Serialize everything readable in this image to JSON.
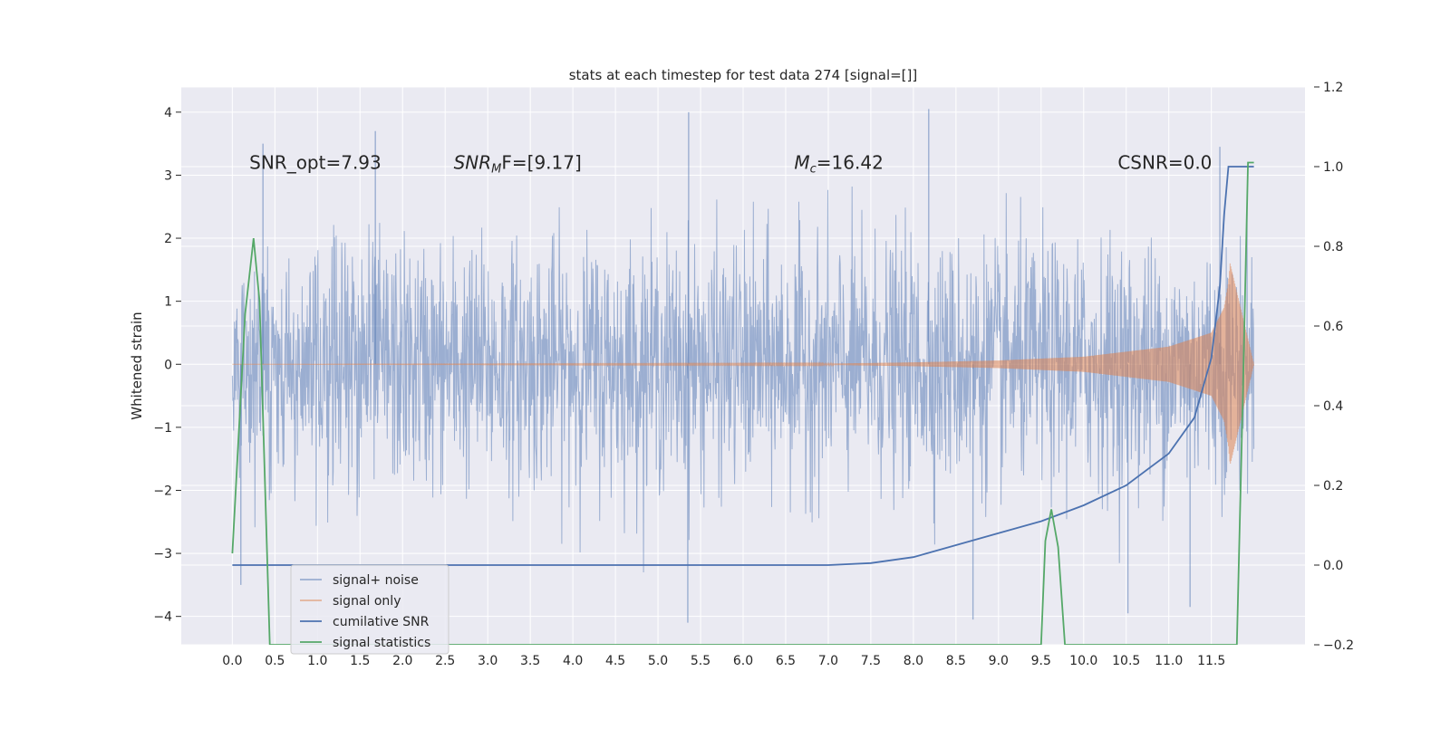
{
  "chart_data": {
    "type": "line",
    "title": "stats at each timestep for test data 274 [signal=[]]",
    "xlabel": "",
    "ylabel": "Whitened strain",
    "xlim": [
      -0.6,
      12.6
    ],
    "ylim": [
      -4.45,
      4.4
    ],
    "y2lim": [
      -0.2,
      1.2
    ],
    "x_ticks": [
      0.0,
      0.5,
      1.0,
      1.5,
      2.0,
      2.5,
      3.0,
      3.5,
      4.0,
      4.5,
      5.0,
      5.5,
      6.0,
      6.5,
      7.0,
      7.5,
      8.0,
      8.5,
      9.0,
      9.5,
      10.0,
      10.5,
      11.0,
      11.5
    ],
    "x_tick_labels": [
      "0.0",
      "0.5",
      "1.0",
      "1.5",
      "2.0",
      "2.5",
      "3.0",
      "3.5",
      "4.0",
      "4.5",
      "5.0",
      "5.5",
      "6.0",
      "6.5",
      "7.0",
      "7.5",
      "8.0",
      "8.5",
      "9.0",
      "9.5",
      "10.0",
      "10.5",
      "11.0",
      "11.5"
    ],
    "y_ticks": [
      -4,
      -3,
      -2,
      -1,
      0,
      1,
      2,
      3,
      4
    ],
    "y_tick_labels": [
      "−4",
      "−3",
      "−2",
      "−1",
      "0",
      "1",
      "2",
      "3",
      "4"
    ],
    "y2_ticks": [
      -0.2,
      0.0,
      0.2,
      0.4,
      0.6,
      0.8,
      1.0,
      1.2
    ],
    "y2_tick_labels": [
      "−0.2",
      "0.0",
      "0.2",
      "0.4",
      "0.6",
      "0.8",
      "1.0",
      "1.2"
    ],
    "grid": true,
    "legend_position": "lower-left",
    "annotations": [
      {
        "id": "snr-opt",
        "text": "SNR_opt=7.93",
        "x": 0.2,
        "y": 3.2
      },
      {
        "id": "snr-mf",
        "text": "SNR_MF=[9.17]",
        "x": 2.6,
        "y": 3.2,
        "base": "SNR",
        "sub": "M",
        "rest": "F=[9.17]"
      },
      {
        "id": "mc",
        "text": "M_c=16.42",
        "x": 6.6,
        "y": 3.2,
        "base": "M",
        "sub": "c",
        "rest": "=16.42"
      },
      {
        "id": "csnr",
        "text": "CSNR=0.0",
        "x": 10.4,
        "y": 3.2
      }
    ],
    "series": [
      {
        "name": "signal+ noise",
        "color": "#4c72b0",
        "opacity": 0.5,
        "axis": "left",
        "x_range": [
          0.0,
          12.0
        ],
        "amplitude_typical": 1.9,
        "peaks": [
          [
            0.36,
            3.5
          ],
          [
            1.68,
            3.7
          ],
          [
            5.36,
            4.0
          ],
          [
            8.18,
            4.05
          ],
          [
            11.6,
            3.45
          ],
          [
            0.1,
            -3.5
          ],
          [
            5.35,
            -4.1
          ],
          [
            8.7,
            -4.05
          ],
          [
            10.52,
            -3.95
          ],
          [
            11.25,
            -3.85
          ]
        ]
      },
      {
        "name": "signal only",
        "color": "#dd8452",
        "opacity": 0.55,
        "axis": "left",
        "envelope": {
          "x": [
            0.0,
            7.0,
            8.0,
            9.0,
            10.0,
            11.0,
            11.5,
            11.65,
            11.7,
            11.72,
            12.0
          ],
          "amp": [
            0.0,
            0.01,
            0.03,
            0.06,
            0.12,
            0.28,
            0.5,
            0.9,
            1.3,
            1.6,
            0.0
          ]
        }
      },
      {
        "name": "cumilative SNR",
        "color": "#4c72b0",
        "axis": "right",
        "x": [
          0.0,
          7.0,
          7.5,
          8.0,
          8.5,
          9.0,
          9.5,
          10.0,
          10.5,
          11.0,
          11.3,
          11.5,
          11.6,
          11.65,
          11.7,
          12.0
        ],
        "y": [
          0.0,
          0.0,
          0.005,
          0.02,
          0.05,
          0.08,
          0.11,
          0.15,
          0.2,
          0.28,
          0.37,
          0.52,
          0.7,
          0.88,
          1.0,
          1.0
        ]
      },
      {
        "name": "signal statistics",
        "color": "#55a868",
        "axis": "left",
        "x": [
          0.0,
          0.15,
          0.25,
          0.32,
          0.44,
          0.5,
          9.5,
          9.55,
          9.62,
          9.7,
          9.78,
          11.8,
          11.87,
          11.93,
          12.0
        ],
        "y": [
          -3.0,
          0.8,
          2.0,
          1.0,
          -4.45,
          -4.45,
          -4.45,
          -2.8,
          -2.3,
          -2.9,
          -4.45,
          -4.45,
          -0.5,
          3.2,
          3.2
        ]
      }
    ]
  }
}
